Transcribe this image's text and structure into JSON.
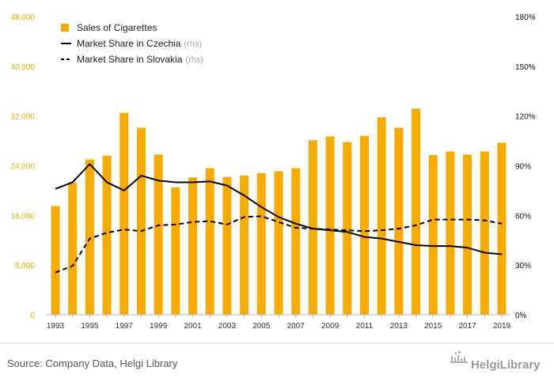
{
  "chart_data": {
    "type": "bar",
    "x": [
      1993,
      1994,
      1995,
      1996,
      1997,
      1998,
      1999,
      2000,
      2001,
      2002,
      2003,
      2004,
      2005,
      2006,
      2007,
      2008,
      2009,
      2010,
      2011,
      2012,
      2013,
      2014,
      2015,
      2016,
      2017,
      2018,
      2019
    ],
    "x_tick_labels": [
      "1993",
      "1995",
      "1997",
      "1999",
      "2001",
      "2003",
      "2005",
      "2007",
      "2009",
      "2011",
      "2013",
      "2015",
      "2017",
      "2019"
    ],
    "y_left": {
      "ylim": [
        0,
        48000
      ],
      "tick_labels": [
        "0",
        "8,000",
        "16,000",
        "24,000",
        "32,000",
        "40,000",
        "48,000"
      ],
      "color": "#f2a900"
    },
    "y_right": {
      "ylim": [
        0,
        180
      ],
      "unit": "%",
      "tick_labels": [
        "0%",
        "30%",
        "60%",
        "90%",
        "120%",
        "150%",
        "180%"
      ],
      "color": "#111111"
    },
    "series": [
      {
        "name": "Sales of Cigarettes",
        "type": "bar",
        "axis": "left",
        "color": "#f5ab00",
        "values": [
          17500,
          21300,
          25000,
          25600,
          32500,
          30100,
          25800,
          20500,
          22100,
          23600,
          22200,
          22400,
          22800,
          23100,
          23600,
          28100,
          28700,
          27800,
          28800,
          31800,
          30100,
          33200,
          25700,
          26300,
          25800,
          26300,
          27700
        ]
      },
      {
        "name": "Market Share in Czechia",
        "suffix": "(rhs)",
        "type": "line",
        "axis": "right",
        "style": "solid",
        "color": "#000000",
        "values": [
          76,
          80,
          91,
          80,
          75,
          84,
          81,
          80,
          80,
          80.5,
          78,
          72,
          65,
          59,
          55,
          52,
          51,
          50,
          47,
          46,
          44,
          42,
          41.5,
          41.5,
          40.5,
          37.5,
          36.5
        ]
      },
      {
        "name": "Market Share in Slovakia",
        "suffix": "(rhs)",
        "type": "line",
        "axis": "right",
        "style": "dashed",
        "color": "#000000",
        "values": [
          25.5,
          29.5,
          46,
          49.5,
          51.5,
          50.5,
          54,
          54.5,
          56,
          56.5,
          54.5,
          59,
          59.5,
          56,
          52.5,
          52,
          51.5,
          51,
          50.5,
          51,
          52,
          54,
          57.5,
          57.5,
          57.5,
          57,
          55
        ]
      }
    ],
    "legend_position": "top-left",
    "grid": false,
    "source": "Source: Company Data, Helgi Library",
    "logo_text": "HelgiLibrary"
  }
}
